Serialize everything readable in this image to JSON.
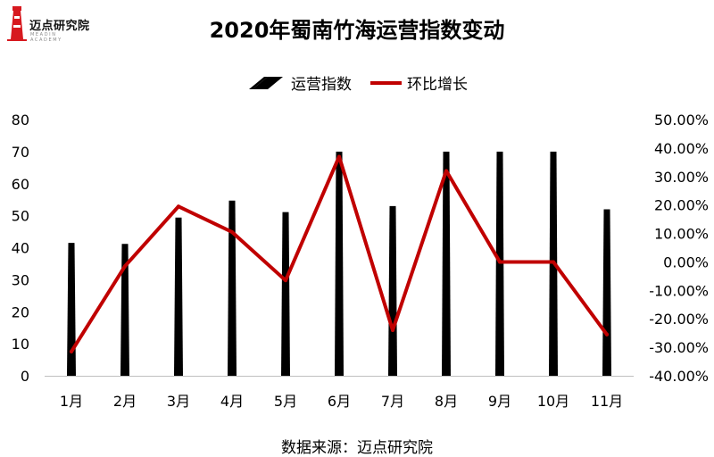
{
  "logo": {
    "text": "迈点研究院",
    "sub_text": "MEADIN ACADEMY"
  },
  "source_note": "数据来源：迈点研究院",
  "colors": {
    "bar": "#000000",
    "line": "#c00000",
    "axis": "#bfbfbf"
  },
  "chart_data": {
    "type": "bar",
    "title": "2020年蜀南竹海运营指数变动",
    "categories": [
      "1月",
      "2月",
      "3月",
      "4月",
      "5月",
      "6月",
      "7月",
      "8月",
      "9月",
      "10月",
      "11月"
    ],
    "series": [
      {
        "name": "运营指数",
        "type": "bar",
        "axis": "left",
        "values": [
          41.5,
          41.2,
          49.4,
          54.7,
          51.1,
          70,
          53,
          70,
          70,
          70,
          52
        ]
      },
      {
        "name": "环比增长",
        "type": "line",
        "axis": "right",
        "values": [
          -31.5,
          -1.5,
          19.5,
          10.5,
          -6.5,
          37,
          -24,
          32,
          0,
          0,
          -25.5
        ]
      }
    ],
    "left_axis": {
      "ylim": [
        0,
        80
      ],
      "ticks": [
        "0",
        "10",
        "20",
        "30",
        "40",
        "50",
        "60",
        "70",
        "80"
      ]
    },
    "right_axis": {
      "ylim": [
        -40,
        50
      ],
      "ticks": [
        "-40.00%",
        "-30.00%",
        "-20.00%",
        "-10.00%",
        "0.00%",
        "10.00%",
        "20.00%",
        "30.00%",
        "40.00%",
        "50.00%"
      ]
    },
    "legend": {
      "placement": "top-center"
    }
  }
}
